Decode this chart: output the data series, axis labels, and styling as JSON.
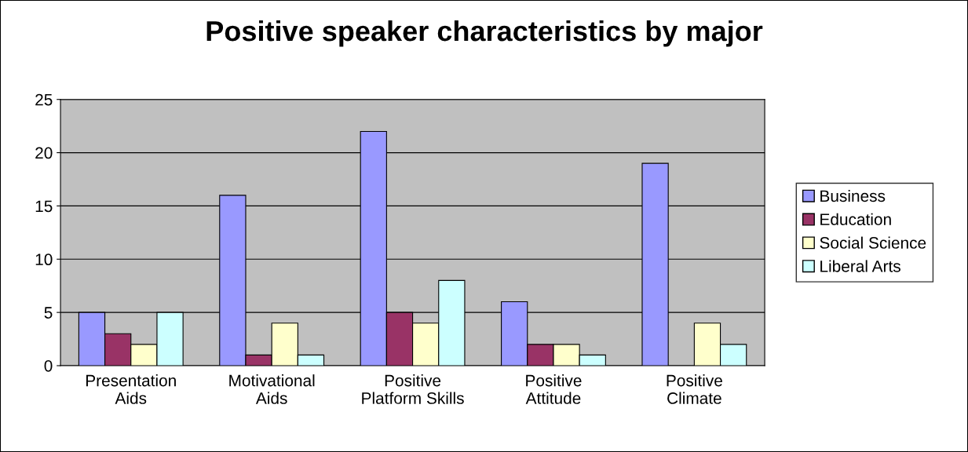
{
  "chart_data": {
    "type": "bar",
    "title": "Positive speaker characteristics by major",
    "categories": [
      "Presentation\nAids",
      "Motivational\nAids",
      "Positive\nPlatform Skills",
      "Positive\nAttitude",
      "Positive\nClimate"
    ],
    "series": [
      {
        "name": "Business",
        "color": "#9999ff",
        "values": [
          5,
          16,
          22,
          6,
          19
        ]
      },
      {
        "name": "Education",
        "color": "#993366",
        "values": [
          3,
          1,
          5,
          2,
          null
        ]
      },
      {
        "name": "Social Science",
        "color": "#ffffcc",
        "values": [
          2,
          4,
          4,
          2,
          4
        ]
      },
      {
        "name": "Liberal Arts",
        "color": "#ccffff",
        "values": [
          5,
          1,
          8,
          1,
          2
        ]
      }
    ],
    "ylim": [
      0,
      25
    ],
    "yticks": [
      0,
      5,
      10,
      15,
      20,
      25
    ],
    "grid": "y",
    "legend": "right"
  }
}
